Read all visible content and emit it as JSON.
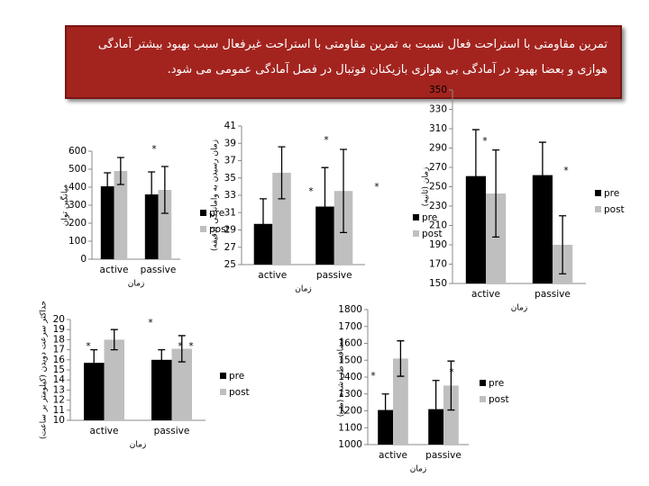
{
  "banner": {
    "lines": [
      "تمرین مقاومتی با استراحت فعال نسبت به تمرین مقاومتی با استراحت غیرفعال سبب بهبود بیشتر آمادگی",
      "هوازی و بعضا بهبود در آمادگی بی هوازی بازیکنان فوتبال در فصل آمادگی عمومی می شود."
    ]
  },
  "chart_data": [
    {
      "type": "bar",
      "y_label": "میانگین توان",
      "x_label": "زمان",
      "categories": [
        "active",
        "passive"
      ],
      "series": [
        {
          "name": "pre",
          "color": "#000000",
          "values": [
            405,
            360
          ],
          "errors": [
            75,
            125
          ]
        },
        {
          "name": "post",
          "color": "#bfbfbf",
          "values": [
            490,
            385
          ],
          "errors": [
            75,
            130
          ]
        }
      ],
      "ylim": [
        0,
        600
      ],
      "yticks": [
        0,
        100,
        200,
        300,
        400,
        500,
        600
      ],
      "annotations": [
        "*"
      ]
    },
    {
      "type": "bar",
      "y_label": "زمان رسیدن به واماندگی (دقیقه)",
      "x_label": "زمان",
      "categories": [
        "active",
        "passive"
      ],
      "series": [
        {
          "name": "pre",
          "color": "#000000",
          "values": [
            29.7,
            31.7
          ],
          "errors": [
            2.9,
            4.5
          ]
        },
        {
          "name": "post",
          "color": "#bfbfbf",
          "values": [
            35.6,
            33.5
          ],
          "errors": [
            3.0,
            4.8
          ]
        }
      ],
      "ylim": [
        25,
        41
      ],
      "yticks": [
        25,
        27,
        29,
        31,
        33,
        35,
        37,
        39,
        41
      ],
      "annotations": [
        "*",
        "*",
        "*"
      ]
    },
    {
      "type": "bar",
      "y_label": "زمان (ثانیه)",
      "x_label": "زمان",
      "categories": [
        "active",
        "passive"
      ],
      "series": [
        {
          "name": "pre",
          "color": "#000000",
          "values": [
            261,
            262
          ],
          "errors": [
            48,
            34
          ]
        },
        {
          "name": "post",
          "color": "#bfbfbf",
          "values": [
            243,
            190
          ],
          "errors": [
            45,
            30
          ]
        }
      ],
      "ylim": [
        150,
        350
      ],
      "yticks": [
        150,
        170,
        190,
        210,
        230,
        250,
        270,
        290,
        310,
        330,
        350
      ],
      "annotations": [
        "*",
        "*"
      ]
    },
    {
      "type": "bar",
      "y_label": "حداکثر سرعت دویدن (کیلومتر بر ساعت)",
      "x_label": "زمان",
      "categories": [
        "active",
        "passive"
      ],
      "series": [
        {
          "name": "pre",
          "color": "#000000",
          "values": [
            15.7,
            16.0
          ],
          "errors": [
            1.3,
            1.0
          ]
        },
        {
          "name": "post",
          "color": "#bfbfbf",
          "values": [
            18.0,
            17.1
          ],
          "errors": [
            1.0,
            1.3
          ]
        }
      ],
      "ylim": [
        10,
        20
      ],
      "yticks": [
        10,
        11,
        12,
        13,
        14,
        15,
        16,
        17,
        18,
        19,
        20
      ],
      "annotations": [
        "*",
        "*",
        "*",
        "*"
      ]
    },
    {
      "type": "bar",
      "y_label": "مسافت طی شده (متر)",
      "x_label": "زمان",
      "categories": [
        "active",
        "passive"
      ],
      "series": [
        {
          "name": "pre",
          "color": "#000000",
          "values": [
            1205,
            1210
          ],
          "errors": [
            95,
            170
          ]
        },
        {
          "name": "post",
          "color": "#bfbfbf",
          "values": [
            1510,
            1350
          ],
          "errors": [
            105,
            145
          ]
        }
      ],
      "ylim": [
        1000,
        1800
      ],
      "yticks": [
        1000,
        1100,
        1200,
        1300,
        1400,
        1500,
        1600,
        1700,
        1800
      ],
      "annotations": [
        "*",
        "*"
      ]
    }
  ]
}
